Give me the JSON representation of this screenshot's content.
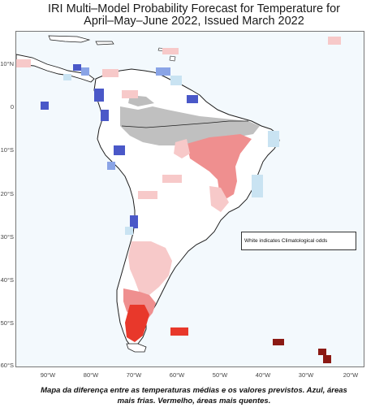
{
  "title": {
    "line1": "IRI Multi–Model Probability Forecast for Temperature for",
    "line2": "April–May–June 2022, Issued March 2022"
  },
  "map": {
    "y_labels": [
      "10°N",
      "0",
      "10°S",
      "20°S",
      "30°S",
      "40°S",
      "50°S",
      "60°S"
    ],
    "x_labels": [
      "90°W",
      "80°W",
      "70°W",
      "60°W",
      "50°W",
      "40°W",
      "30°W",
      "20°W"
    ],
    "legend_note": "White indicates Climatological odds",
    "colors": {
      "ocean": "#f3f9fd",
      "land": "#ffffff",
      "coast": "#1f1f1f",
      "above_light": "#f7c9c9",
      "above_mid": "#ef8f8f",
      "above_strong": "#e8382b",
      "above_dark": "#8b1a14",
      "below_light": "#c9e3f2",
      "below_mid": "#8aa4e6",
      "below_strong": "#4a58c8",
      "dry_season_mask": "#bdbdbd"
    }
  },
  "caption": {
    "line1": "Mapa da diferença entre as temperaturas médias e os valores previstos. Azul, áreas",
    "line2": "mais frias. Vermelho, áreas mais quentes."
  }
}
